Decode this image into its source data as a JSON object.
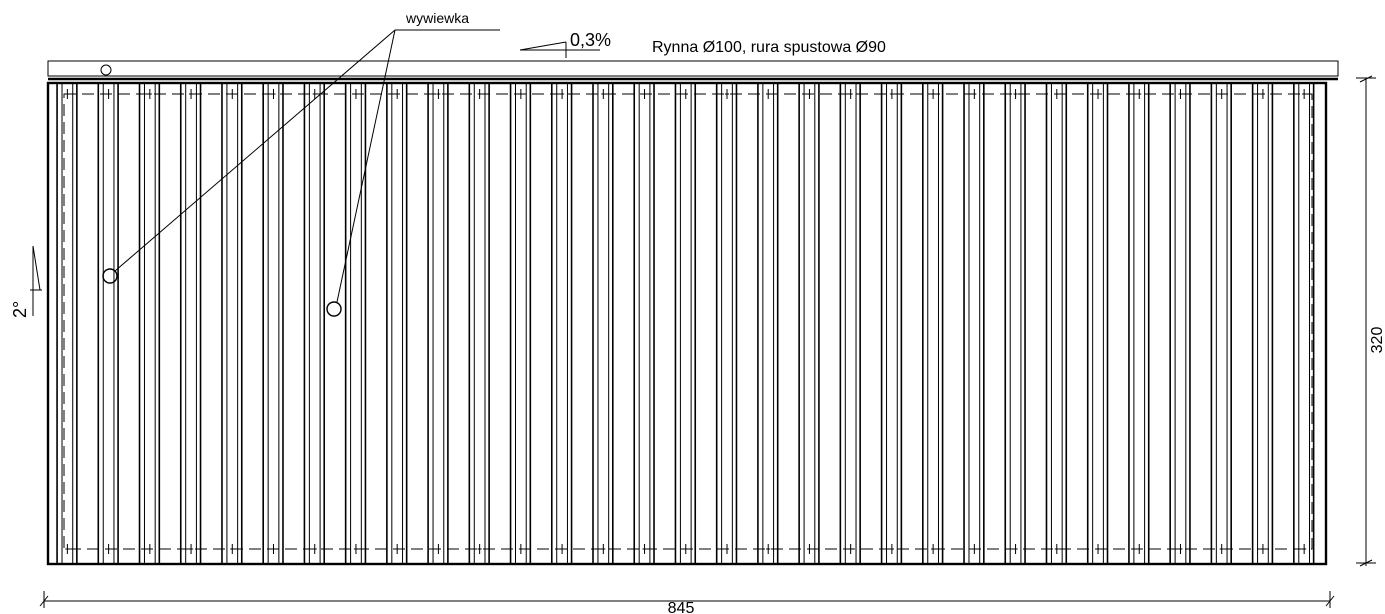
{
  "labels": {
    "vent": "wywiewka",
    "slope_gutter": "0,3%",
    "gutter_spec": "Rynna Ø100, rura spustowa Ø90",
    "slope_roof": "2°",
    "dim_width": "845",
    "dim_height": "320"
  },
  "roof": {
    "corrugation_count": 31,
    "vent_count": 2
  }
}
